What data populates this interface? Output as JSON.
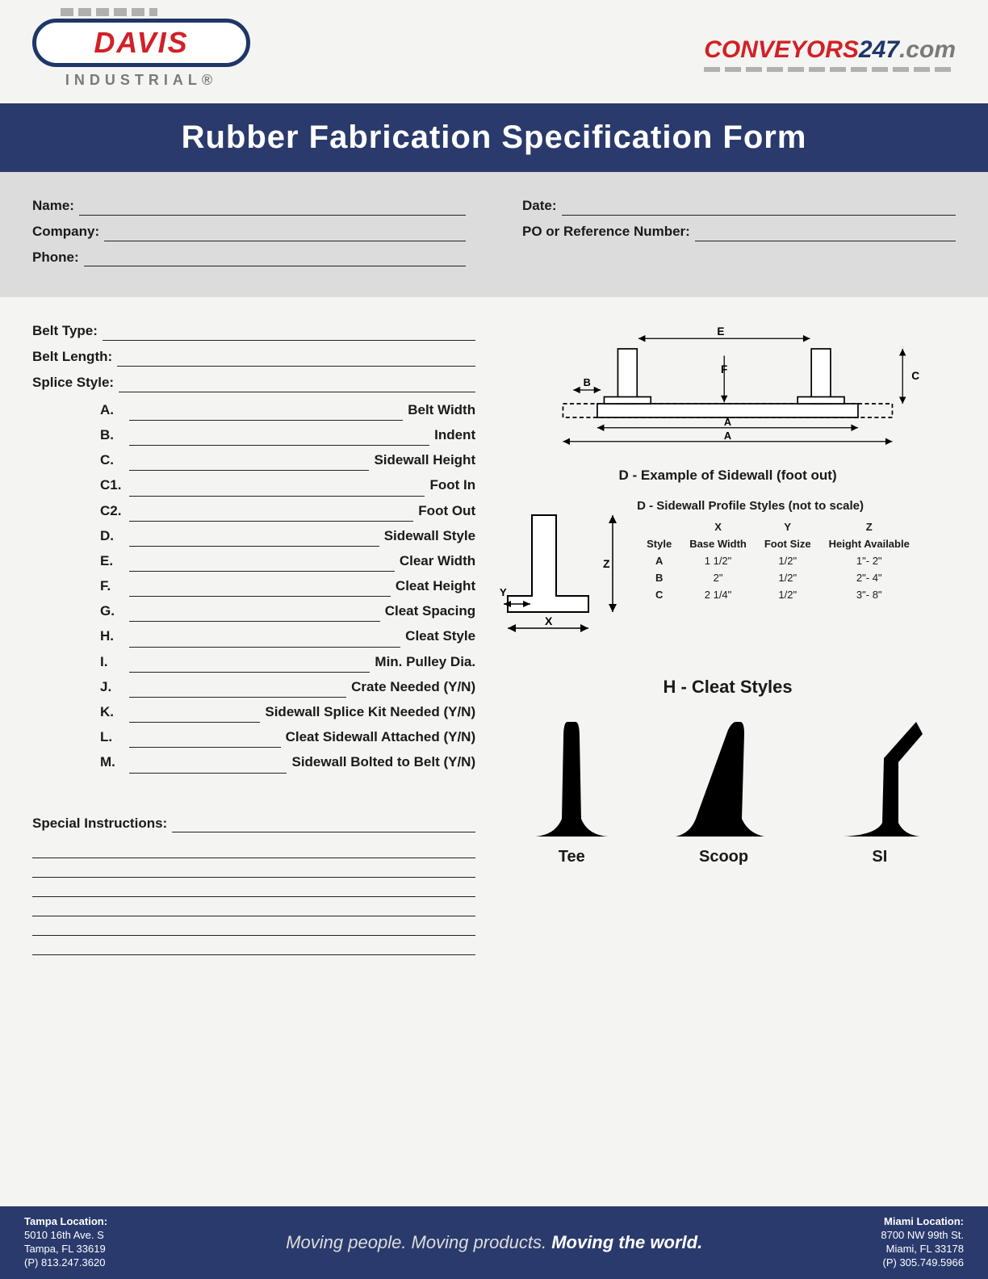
{
  "logo": {
    "main": "DAVIS",
    "sub": "INDUSTRIAL®",
    "right_p1": "CONVEYORS",
    "right_p2": "247",
    "right_p3": ".com"
  },
  "title": "Rubber Fabrication Specification Form",
  "contact": {
    "name": "Name:",
    "company": "Company:",
    "phone": "Phone:",
    "date": "Date:",
    "po": "PO or Reference Number:"
  },
  "spec_top": {
    "belt_type": "Belt Type:",
    "belt_length": "Belt Length:",
    "splice_style": "Splice Style:"
  },
  "spec_items": [
    {
      "k": "A.",
      "d": "Belt Width"
    },
    {
      "k": "B.",
      "d": "Indent"
    },
    {
      "k": "C.",
      "d": "Sidewall Height"
    },
    {
      "k": "C1.",
      "d": "Foot In"
    },
    {
      "k": "C2.",
      "d": "Foot Out"
    },
    {
      "k": "D.",
      "d": "Sidewall Style"
    },
    {
      "k": "E.",
      "d": "Clear Width"
    },
    {
      "k": "F.",
      "d": "Cleat Height"
    },
    {
      "k": "G.",
      "d": "Cleat Spacing"
    },
    {
      "k": "H.",
      "d": "Cleat Style"
    },
    {
      "k": "I.",
      "d": "Min. Pulley Dia."
    },
    {
      "k": "J.",
      "d": "Crate Needed (Y/N)"
    },
    {
      "k": "K.",
      "d": "Sidewall Splice Kit Needed (Y/N)"
    },
    {
      "k": "L.",
      "d": "Cleat Sidewall Attached (Y/N)"
    },
    {
      "k": "M.",
      "d": "Sidewall Bolted to Belt (Y/N)"
    }
  ],
  "special_label": "Special Instructions:",
  "diagram1": {
    "caption": "D  -  Example of Sidewall (foot out)",
    "labels": {
      "A": "A",
      "B": "B",
      "C": "C",
      "E": "E",
      "F": "F"
    }
  },
  "diagram2": {
    "title": "D - Sidewall Profile Styles (not to scale)",
    "axes": {
      "X": "X",
      "Y": "Y",
      "Z": "Z"
    },
    "headers": {
      "style": "Style",
      "x": "Base Width",
      "y": "Foot Size",
      "z": "Height Available",
      "X": "X",
      "Y": "Y",
      "Z": "Z"
    },
    "rows": [
      {
        "s": "A",
        "x": "1 1/2\"",
        "y": "1/2\"",
        "z": "1\"- 2\""
      },
      {
        "s": "B",
        "x": "2\"",
        "y": "1/2\"",
        "z": "2\"- 4\""
      },
      {
        "s": "C",
        "x": "2 1/4\"",
        "y": "1/2\"",
        "z": "3\"- 8\""
      }
    ]
  },
  "cleat": {
    "title": "H - Cleat Styles",
    "items": [
      "Tee",
      "Scoop",
      "SI"
    ]
  },
  "footer": {
    "tampa": {
      "h": "Tampa Location:",
      "l1": "5010 16th Ave. S",
      "l2": "Tampa, FL 33619",
      "l3": "(P) 813.247.3620"
    },
    "miami": {
      "h": "Miami Location:",
      "l1": "8700 NW 99th St.",
      "l2": "Miami, FL 33178",
      "l3": "(P) 305.749.5966"
    },
    "slogan_1": "Moving people. Moving products. ",
    "slogan_2": "Moving the world."
  },
  "colors": {
    "navy": "#2a3a6c",
    "red": "#d22027",
    "grey_bg": "#dcdcdc",
    "page_bg": "#f4f4f2"
  }
}
